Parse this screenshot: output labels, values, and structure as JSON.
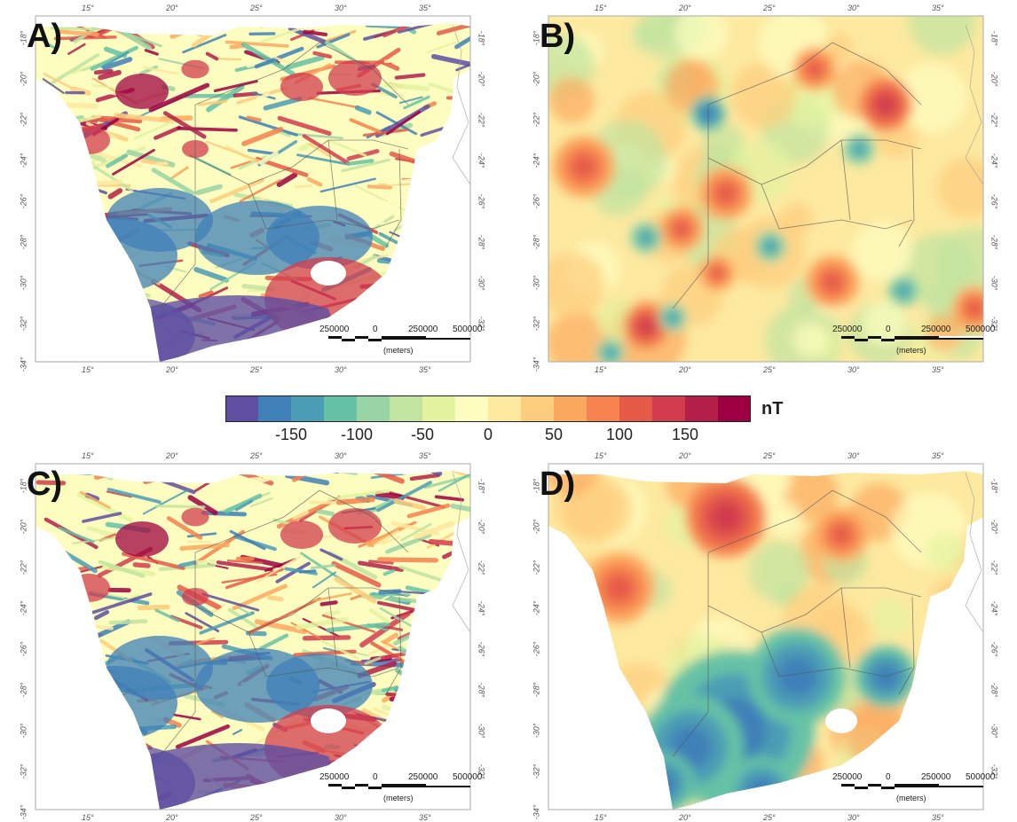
{
  "panels": [
    {
      "id": "A",
      "label": "A)",
      "style": "noisy-full",
      "lon_ticks": [
        "15°",
        "20°",
        "25°",
        "30°",
        "35°"
      ],
      "lat_ticks_left": [
        "-18°",
        "-20°",
        "-22°",
        "-24°",
        "-26°",
        "-28°",
        "-30°",
        "-32°",
        "-34°"
      ],
      "lat_ticks_right": [
        "-18°",
        "-20°",
        "-22°",
        "-24°",
        "-26°",
        "-28°",
        "-30°",
        "-32°"
      ],
      "scale": {
        "labels": [
          "250000",
          "0",
          "250000",
          "500000"
        ],
        "unit": "(meters)"
      }
    },
    {
      "id": "B",
      "label": "B)",
      "style": "smooth-rect",
      "lon_ticks": [
        "15°",
        "20°",
        "25°",
        "30°",
        "35°"
      ],
      "lat_ticks_left": [
        "-18°",
        "-20°",
        "-22°",
        "-24°",
        "-26°",
        "-28°",
        "-30°",
        "-32°",
        "-34°"
      ],
      "lat_ticks_right": [
        "-18°",
        "-20°",
        "-22°",
        "-24°",
        "-26°",
        "-28°",
        "-30°",
        "-32°"
      ],
      "scale": {
        "labels": [
          "250000",
          "0",
          "250000",
          "500000"
        ],
        "unit": "(meters)"
      }
    },
    {
      "id": "C",
      "label": "C)",
      "style": "noisy-full",
      "lon_ticks": [
        "15°",
        "20°",
        "25°",
        "30°",
        "35°"
      ],
      "lat_ticks_left": [
        "-18°",
        "-20°",
        "-22°",
        "-24°",
        "-26°",
        "-28°",
        "-30°",
        "-32°",
        "-34°"
      ],
      "lat_ticks_right": [
        "-18°",
        "-20°",
        "-22°",
        "-24°",
        "-26°",
        "-28°",
        "-30°",
        "-32°"
      ],
      "scale": {
        "labels": [
          "250000",
          "0",
          "250000",
          "500000"
        ],
        "unit": "(meters)"
      }
    },
    {
      "id": "D",
      "label": "D)",
      "style": "smooth-land",
      "lon_ticks": [
        "15°",
        "20°",
        "25°",
        "30°",
        "35°"
      ],
      "lat_ticks_left": [
        "-18°",
        "-20°",
        "-22°",
        "-24°",
        "-26°",
        "-28°",
        "-30°",
        "-32°",
        "-34°"
      ],
      "lat_ticks_right": [
        "-18°",
        "-20°",
        "-22°",
        "-24°",
        "-26°",
        "-28°",
        "-30°",
        "-32°"
      ],
      "scale": {
        "labels": [
          "250000",
          "0",
          "250000",
          "500000"
        ],
        "unit": "(meters)"
      }
    }
  ],
  "colorbar": {
    "unit": "nT",
    "tick_labels": [
      "-150",
      "-100",
      "-50",
      "0",
      "50",
      "100",
      "150"
    ],
    "tick_values": [
      -150,
      -100,
      -50,
      0,
      50,
      100,
      150
    ],
    "range": [
      -200,
      200
    ],
    "colors": [
      "#5e4fa2",
      "#3f80b8",
      "#4b9cb5",
      "#66c2a5",
      "#99d5a4",
      "#c1e4a0",
      "#e3f3a0",
      "#fefdc0",
      "#fde9a0",
      "#fdcd7e",
      "#fca960",
      "#f5824f",
      "#e65b48",
      "#d23c4e",
      "#b41f4a",
      "#9e0142"
    ]
  },
  "features": {
    "A": {
      "hot": [
        [
          120,
          85,
          50,
          3
        ],
        [
          180,
          60,
          26,
          2
        ],
        [
          300,
          80,
          40,
          2
        ],
        [
          60,
          140,
          40,
          1
        ],
        [
          360,
          70,
          50,
          1
        ],
        [
          180,
          150,
          25,
          1
        ],
        [
          330,
          320,
          120,
          1
        ]
      ],
      "cold": [
        [
          140,
          230,
          60,
          1
        ],
        [
          90,
          270,
          70,
          1
        ],
        [
          250,
          250,
          70,
          1
        ],
        [
          110,
          360,
          70,
          2
        ],
        [
          320,
          250,
          60,
          1
        ]
      ]
    },
    "B": {
      "hot": [
        [
          380,
          100,
          30,
          2
        ],
        [
          40,
          170,
          35,
          1
        ],
        [
          200,
          200,
          30,
          1
        ],
        [
          150,
          240,
          25,
          1
        ],
        [
          320,
          300,
          30,
          1
        ],
        [
          110,
          350,
          25,
          2
        ],
        [
          480,
          330,
          25,
          1
        ],
        [
          300,
          60,
          25,
          1
        ],
        [
          190,
          290,
          20,
          1
        ]
      ],
      "cold": [
        [
          180,
          110,
          20,
          2
        ],
        [
          350,
          150,
          18,
          1
        ],
        [
          110,
          250,
          18,
          1
        ],
        [
          250,
          260,
          18,
          1
        ],
        [
          70,
          380,
          16,
          1
        ],
        [
          400,
          310,
          18,
          1
        ],
        [
          140,
          340,
          16,
          1
        ]
      ]
    },
    "C": {
      "hot": [
        [
          120,
          85,
          50,
          3
        ],
        [
          180,
          60,
          26,
          2
        ],
        [
          300,
          80,
          40,
          2
        ],
        [
          60,
          140,
          40,
          1
        ],
        [
          360,
          70,
          50,
          1
        ],
        [
          180,
          150,
          25,
          1
        ],
        [
          330,
          320,
          120,
          1
        ]
      ],
      "cold": [
        [
          140,
          230,
          60,
          1
        ],
        [
          90,
          270,
          70,
          1
        ],
        [
          250,
          250,
          70,
          1
        ],
        [
          110,
          360,
          70,
          2
        ],
        [
          320,
          250,
          60,
          1
        ]
      ]
    },
    "D": {
      "hot": [
        [
          200,
          60,
          45,
          2
        ],
        [
          80,
          140,
          40,
          1
        ],
        [
          330,
          80,
          30,
          1
        ]
      ],
      "cold": [
        [
          210,
          300,
          90,
          2
        ],
        [
          160,
          320,
          60,
          3
        ],
        [
          280,
          240,
          55,
          2
        ],
        [
          380,
          240,
          35,
          3
        ],
        [
          240,
          370,
          40,
          2
        ],
        [
          130,
          360,
          35,
          3
        ]
      ]
    }
  }
}
